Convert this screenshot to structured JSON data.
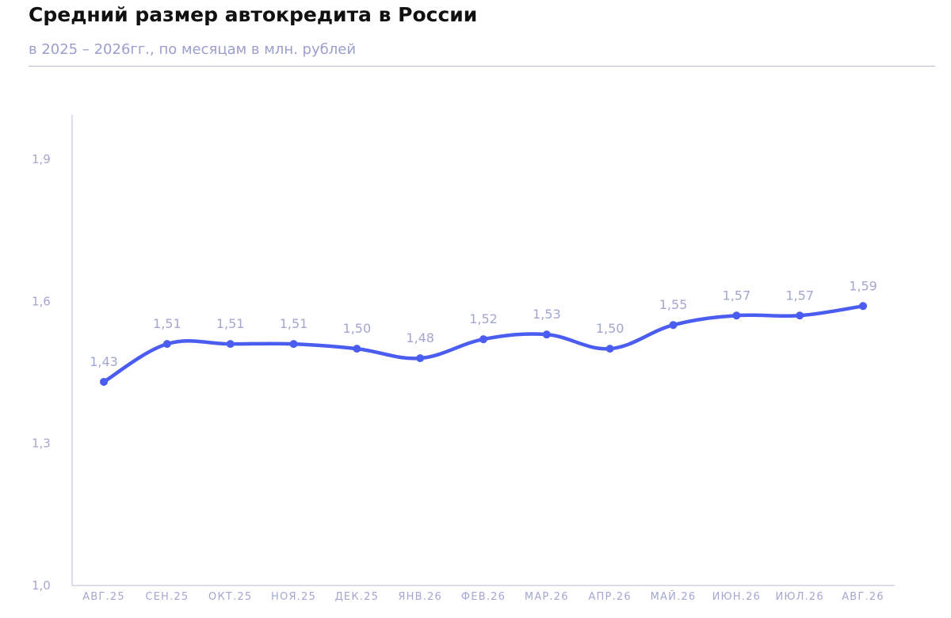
{
  "header": {
    "title": "Средний размер автокредита в России",
    "subtitle": "в 2025 – 2026гг., по месяцам в млн. рублей"
  },
  "chart_data": {
    "type": "line",
    "title": "Средний размер автокредита в России",
    "subtitle": "в 2025 – 2026гг., по месяцам в млн. рублей",
    "xlabel": "",
    "ylabel": "",
    "categories": [
      "АВГ.25",
      "СЕН.25",
      "ОКТ.25",
      "НОЯ.25",
      "ДЕК.25",
      "ЯНВ.26",
      "ФЕВ.26",
      "МАР.26",
      "АПР.26",
      "МАЙ.26",
      "ИЮН.26",
      "ИЮЛ.26",
      "АВГ.26"
    ],
    "series": [
      {
        "values": [
          1.43,
          1.51,
          1.51,
          1.51,
          1.5,
          1.48,
          1.52,
          1.53,
          1.5,
          1.55,
          1.57,
          1.57,
          1.59
        ],
        "labels": [
          "1,43",
          "1,51",
          "1,51",
          "1,51",
          "1,50",
          "1,48",
          "1,52",
          "1,53",
          "1,50",
          "1,55",
          "1,57",
          "1,57",
          "1,59"
        ]
      }
    ],
    "ylim": [
      1.0,
      1.9
    ],
    "yticks": [
      1.0,
      1.3,
      1.6,
      1.9
    ],
    "ytick_labels": [
      "1,0",
      "1,3",
      "1,6",
      "1,9"
    ],
    "grid": false,
    "legend": "none",
    "colors": {
      "line": "#4a5df0",
      "axis": "#b9bcd9",
      "tick_text": "#a3a7cf"
    }
  }
}
